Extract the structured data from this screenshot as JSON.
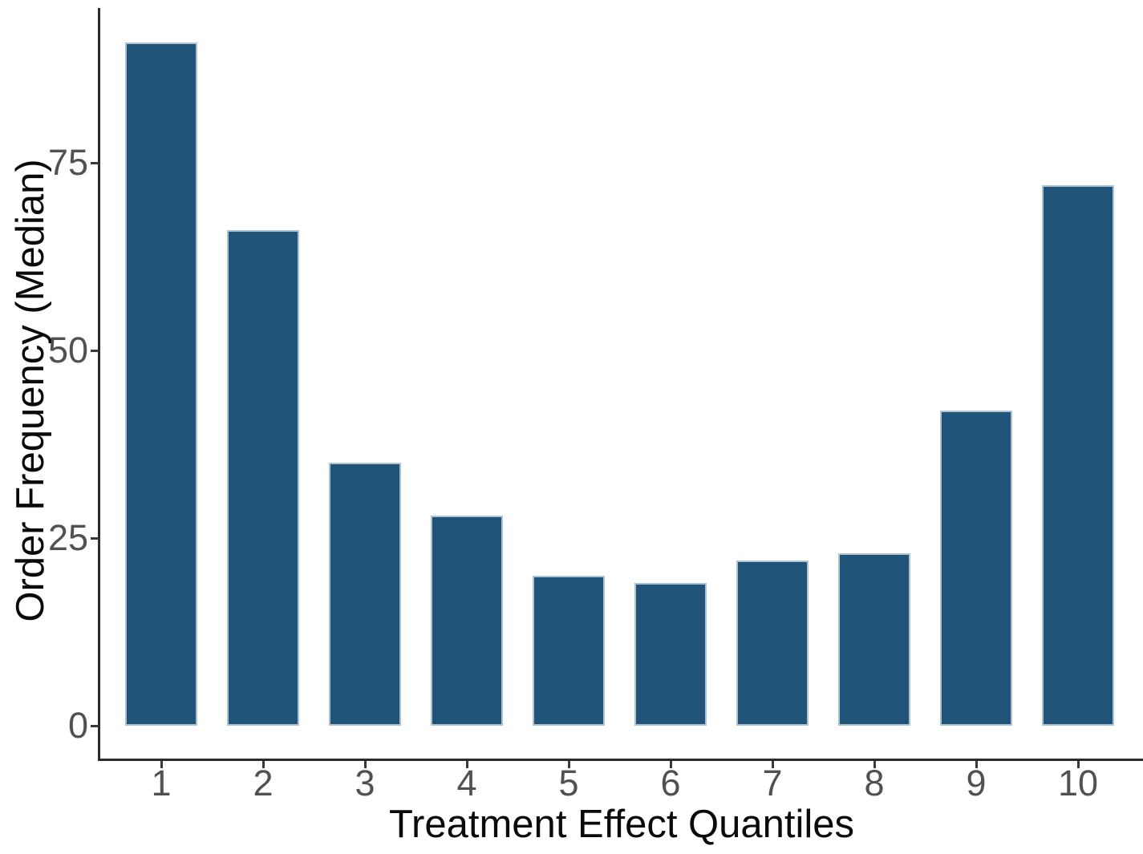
{
  "chart_data": {
    "type": "bar",
    "categories": [
      "1",
      "2",
      "3",
      "4",
      "5",
      "6",
      "7",
      "8",
      "9",
      "10"
    ],
    "values": [
      91,
      66,
      35,
      28,
      20,
      19,
      22,
      23,
      42,
      72
    ],
    "title": "",
    "xlabel": "Treatment Effect Quantiles",
    "ylabel": "Order Frequency (Median)",
    "y_ticks": [
      0,
      25,
      50,
      75
    ],
    "ylim": [
      0,
      95.5
    ],
    "grid": false,
    "legend": false,
    "colors": {
      "bar_fill": "#1f5378",
      "bar_edge": "#aec3d2",
      "axis_line": "#2b2b2b",
      "tick_mark": "#3a3a3a",
      "tick_label": "#515151",
      "axis_title": "#0a0a0a",
      "background": "#ffffff"
    }
  }
}
